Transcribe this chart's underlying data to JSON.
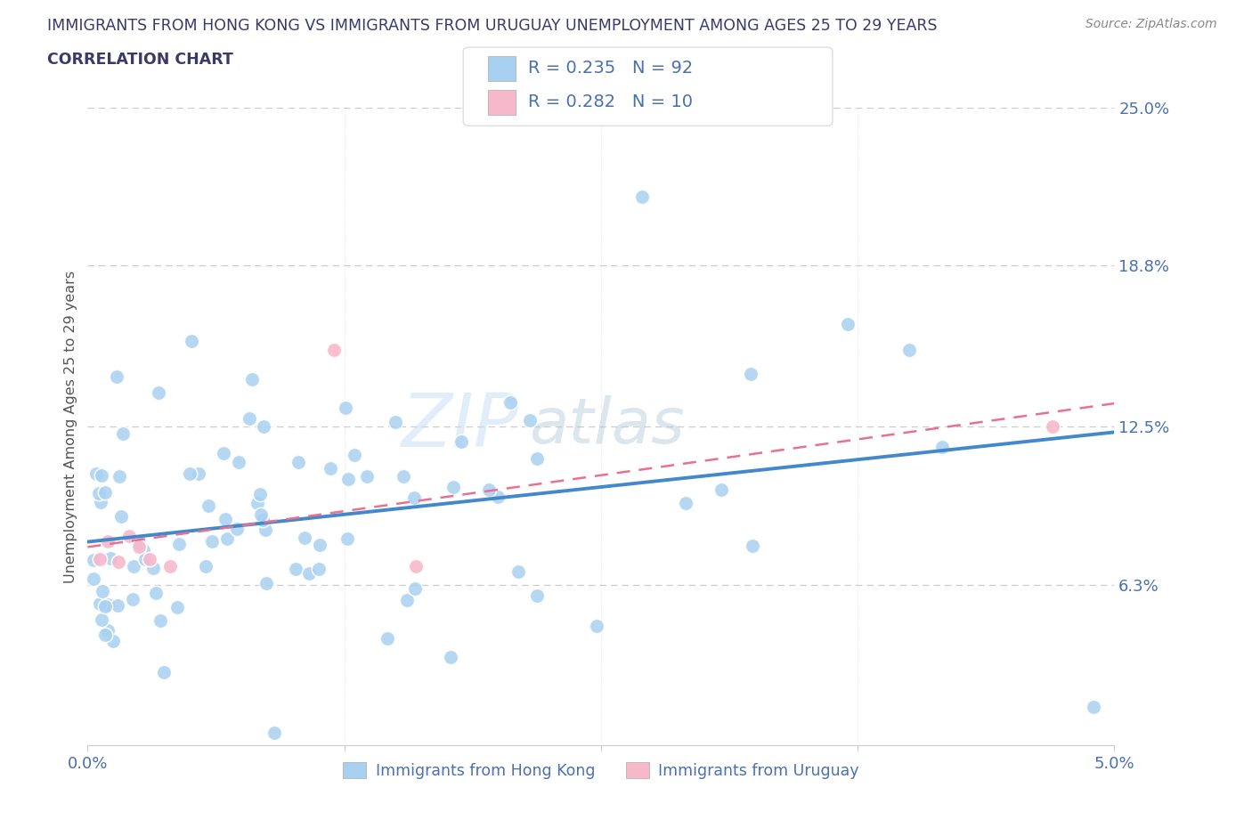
{
  "title_line1": "IMMIGRANTS FROM HONG KONG VS IMMIGRANTS FROM URUGUAY UNEMPLOYMENT AMONG AGES 25 TO 29 YEARS",
  "title_line2": "CORRELATION CHART",
  "source_text": "Source: ZipAtlas.com",
  "ylabel": "Unemployment Among Ages 25 to 29 years",
  "xmin": 0.0,
  "xmax": 0.05,
  "ymin": 0.0,
  "ymax": 0.25,
  "ytick_positions": [
    0.063,
    0.125,
    0.188,
    0.25
  ],
  "ytick_labels": [
    "6.3%",
    "12.5%",
    "18.8%",
    "25.0%"
  ],
  "xtick_positions": [
    0.0,
    0.0125,
    0.025,
    0.0375,
    0.05
  ],
  "xtick_labels": [
    "0.0%",
    "",
    "",
    "",
    "5.0%"
  ],
  "hk_color": "#a8d0f0",
  "uy_color": "#f8b8cc",
  "hk_line_color": "#4488cc",
  "uy_line_color": "#e87090",
  "hk_R": 0.235,
  "hk_N": 92,
  "uy_R": 0.282,
  "uy_N": 10,
  "watermark_zip": "ZIP",
  "watermark_atlas": "atlas",
  "background_color": "#ffffff",
  "grid_color": "#cccccc",
  "title_color": "#3a3a6a",
  "tick_color": "#4a70b0",
  "legend_text_color": "#222222",
  "legend_val_color": "#4a70b0",
  "ylabel_color": "#555555",
  "source_color": "#888888"
}
